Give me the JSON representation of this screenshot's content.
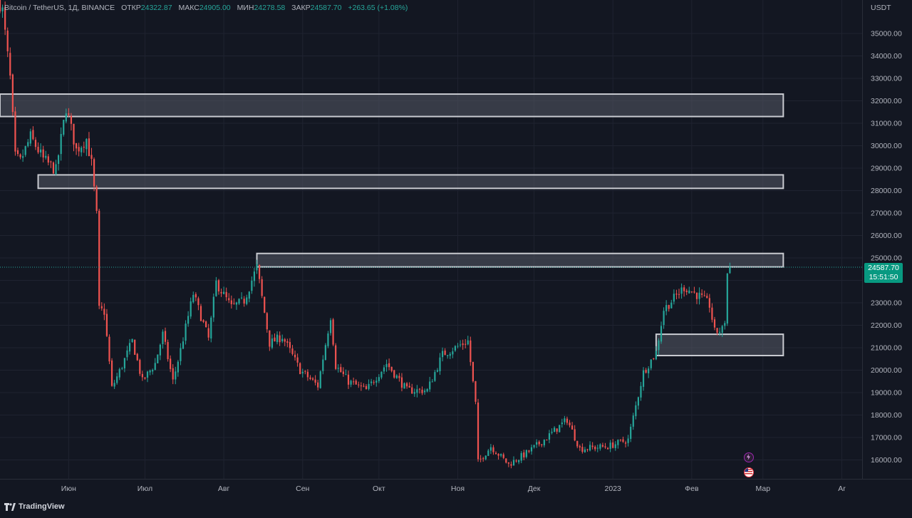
{
  "legend": {
    "symbol": "Bitcoin / TetherUS, 1Д, BINANCE",
    "open_label": "ОТКР",
    "open": "24322.87",
    "high_label": "МАКС",
    "high": "24905.00",
    "low_label": "МИН",
    "low": "24278.58",
    "close_label": "ЗАКР",
    "close": "24587.70",
    "change": "+263.65 (+1.08%)"
  },
  "currency": "USDT",
  "price_tag": {
    "price": "24587.70",
    "countdown": "15:51:50"
  },
  "branding": "TradingView",
  "colors": {
    "background": "#131722",
    "grid": "#1f2330",
    "up": "#26a69a",
    "down": "#ef5350",
    "zone_fill": "#555a66",
    "zone_border": "#c9cbd1",
    "price_line": "#26a69a"
  },
  "icons": [
    "tradingview-logo-icon",
    "lightning-icon",
    "us-flag-icon"
  ],
  "chart_data": {
    "type": "candlestick",
    "title": "",
    "ylim": [
      15500,
      36500
    ],
    "yticks": [
      16000,
      17000,
      18000,
      19000,
      20000,
      21000,
      22000,
      23000,
      24000,
      25000,
      26000,
      27000,
      28000,
      29000,
      30000,
      31000,
      32000,
      33000,
      34000,
      35000
    ],
    "ytick_labels": [
      "16000.00",
      "17000.00",
      "18000.00",
      "19000.00",
      "20000.00",
      "21000.00",
      "22000.00",
      "23000.00",
      "24000.00",
      "25000.00",
      "26000.00",
      "27000.00",
      "28000.00",
      "29000.00",
      "30000.00",
      "31000.00",
      "32000.00",
      "33000.00",
      "34000.00",
      "35000.00"
    ],
    "x_start_date": "2022-05-05",
    "x_end_date": "2023-04-09",
    "xticks": [
      {
        "label": "Июн",
        "date": "2022-06-01"
      },
      {
        "label": "Июл",
        "date": "2022-07-01"
      },
      {
        "label": "Авг",
        "date": "2022-08-01"
      },
      {
        "label": "Сен",
        "date": "2022-09-01"
      },
      {
        "label": "Окт",
        "date": "2022-10-01"
      },
      {
        "label": "Ноя",
        "date": "2022-11-01"
      },
      {
        "label": "Дек",
        "date": "2022-12-01"
      },
      {
        "label": "2023",
        "date": "2023-01-01"
      },
      {
        "label": "Фев",
        "date": "2023-02-01"
      },
      {
        "label": "Мар",
        "date": "2023-03-01"
      },
      {
        "label": "Ar",
        "date": "2023-04-01"
      }
    ],
    "last_price": 24587.7,
    "zones": [
      {
        "start": "2022-05-05",
        "end": "2023-03-09",
        "low": 31300,
        "high": 32300
      },
      {
        "start": "2022-05-20",
        "end": "2023-03-09",
        "low": 28100,
        "high": 28700
      },
      {
        "start": "2022-08-14",
        "end": "2023-03-09",
        "low": 24600,
        "high": 25200
      },
      {
        "start": "2023-01-18",
        "end": "2023-03-09",
        "low": 20650,
        "high": 21600
      }
    ],
    "price_path": [
      {
        "date": "2022-05-03",
        "close": 37000
      },
      {
        "date": "2022-05-06",
        "close": 36000
      },
      {
        "date": "2022-05-09",
        "close": 33000
      },
      {
        "date": "2022-05-11",
        "close": 29500
      },
      {
        "date": "2022-05-13",
        "close": 29300
      },
      {
        "date": "2022-05-17",
        "close": 30400
      },
      {
        "date": "2022-05-22",
        "close": 29400
      },
      {
        "date": "2022-05-27",
        "close": 28900
      },
      {
        "date": "2022-05-31",
        "close": 31700
      },
      {
        "date": "2022-06-04",
        "close": 29800
      },
      {
        "date": "2022-06-08",
        "close": 30300
      },
      {
        "date": "2022-06-10",
        "close": 29200
      },
      {
        "date": "2022-06-12",
        "close": 26900
      },
      {
        "date": "2022-06-13",
        "close": 22700
      },
      {
        "date": "2022-06-15",
        "close": 22600
      },
      {
        "date": "2022-06-18",
        "close": 19200
      },
      {
        "date": "2022-06-22",
        "close": 20200
      },
      {
        "date": "2022-06-26",
        "close": 21300
      },
      {
        "date": "2022-06-30",
        "close": 19500
      },
      {
        "date": "2022-07-05",
        "close": 20300
      },
      {
        "date": "2022-07-08",
        "close": 21600
      },
      {
        "date": "2022-07-12",
        "close": 19500
      },
      {
        "date": "2022-07-15",
        "close": 20900
      },
      {
        "date": "2022-07-20",
        "close": 23400
      },
      {
        "date": "2022-07-26",
        "close": 21400
      },
      {
        "date": "2022-07-29",
        "close": 23900
      },
      {
        "date": "2022-08-04",
        "close": 22800
      },
      {
        "date": "2022-08-09",
        "close": 23100
      },
      {
        "date": "2022-08-14",
        "close": 24600
      },
      {
        "date": "2022-08-19",
        "close": 21200
      },
      {
        "date": "2022-08-24",
        "close": 21500
      },
      {
        "date": "2022-08-31",
        "close": 20000
      },
      {
        "date": "2022-09-07",
        "close": 19300
      },
      {
        "date": "2022-09-12",
        "close": 22400
      },
      {
        "date": "2022-09-14",
        "close": 20200
      },
      {
        "date": "2022-09-19",
        "close": 19500
      },
      {
        "date": "2022-09-26",
        "close": 19100
      },
      {
        "date": "2022-10-04",
        "close": 20300
      },
      {
        "date": "2022-10-12",
        "close": 19100
      },
      {
        "date": "2022-10-20",
        "close": 19100
      },
      {
        "date": "2022-10-26",
        "close": 20700
      },
      {
        "date": "2022-11-05",
        "close": 21300
      },
      {
        "date": "2022-11-08",
        "close": 18500
      },
      {
        "date": "2022-11-09",
        "close": 15900
      },
      {
        "date": "2022-11-14",
        "close": 16600
      },
      {
        "date": "2022-11-21",
        "close": 15800
      },
      {
        "date": "2022-11-28",
        "close": 16300
      },
      {
        "date": "2022-12-05",
        "close": 16900
      },
      {
        "date": "2022-12-14",
        "close": 17800
      },
      {
        "date": "2022-12-19",
        "close": 16500
      },
      {
        "date": "2022-12-30",
        "close": 16600
      },
      {
        "date": "2023-01-07",
        "close": 16900
      },
      {
        "date": "2023-01-13",
        "close": 19900
      },
      {
        "date": "2023-01-18",
        "close": 20800
      },
      {
        "date": "2023-01-21",
        "close": 22700
      },
      {
        "date": "2023-01-29",
        "close": 23700
      },
      {
        "date": "2023-02-04",
        "close": 23300
      },
      {
        "date": "2023-02-08",
        "close": 22900
      },
      {
        "date": "2023-02-10",
        "close": 21700
      },
      {
        "date": "2023-02-13",
        "close": 21800
      },
      {
        "date": "2023-02-14",
        "close": 22200
      },
      {
        "date": "2023-02-15",
        "close": 24300
      },
      {
        "date": "2023-02-16",
        "close": 24587.7
      }
    ]
  }
}
